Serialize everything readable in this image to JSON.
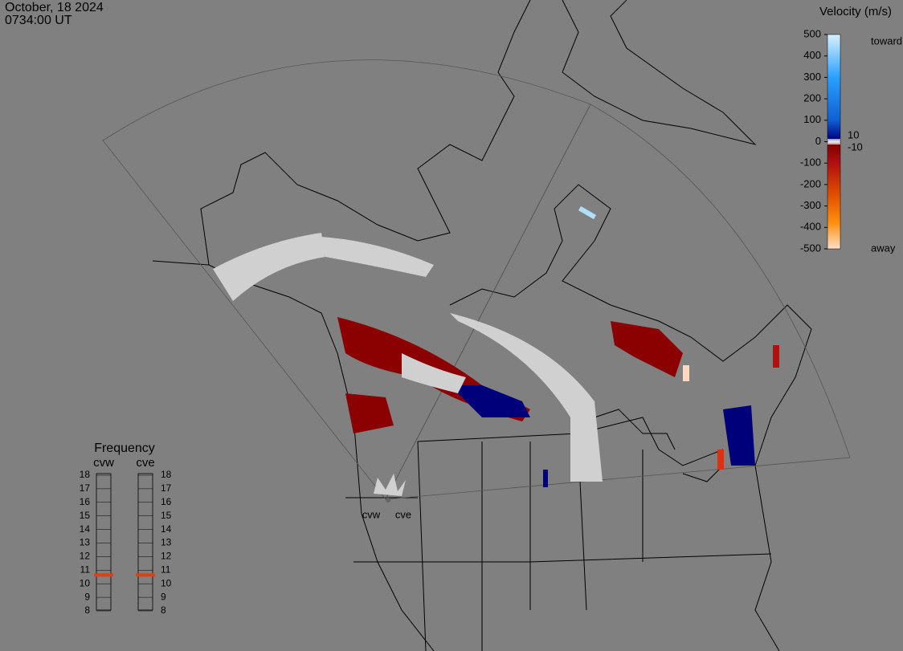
{
  "header": {
    "date": "October, 18 2024",
    "time": "0734:00 UT"
  },
  "colorbar": {
    "title": "Velocity (m/s)",
    "ticks": [
      500,
      400,
      300,
      200,
      100,
      0,
      -100,
      -200,
      -300,
      -400,
      -500
    ],
    "inner_ticks": [
      10,
      -10
    ],
    "toward": "toward",
    "away": "away"
  },
  "frequency": {
    "title": "Frequency",
    "ticks": [
      18,
      17,
      16,
      15,
      14,
      13,
      12,
      11,
      10,
      9,
      8
    ],
    "radars": [
      {
        "name": "cvw",
        "value": 11,
        "color": "#e04010"
      },
      {
        "name": "cve",
        "value": 11,
        "color": "#e04010"
      }
    ]
  },
  "radar_sites": [
    "cvw",
    "cve"
  ]
}
